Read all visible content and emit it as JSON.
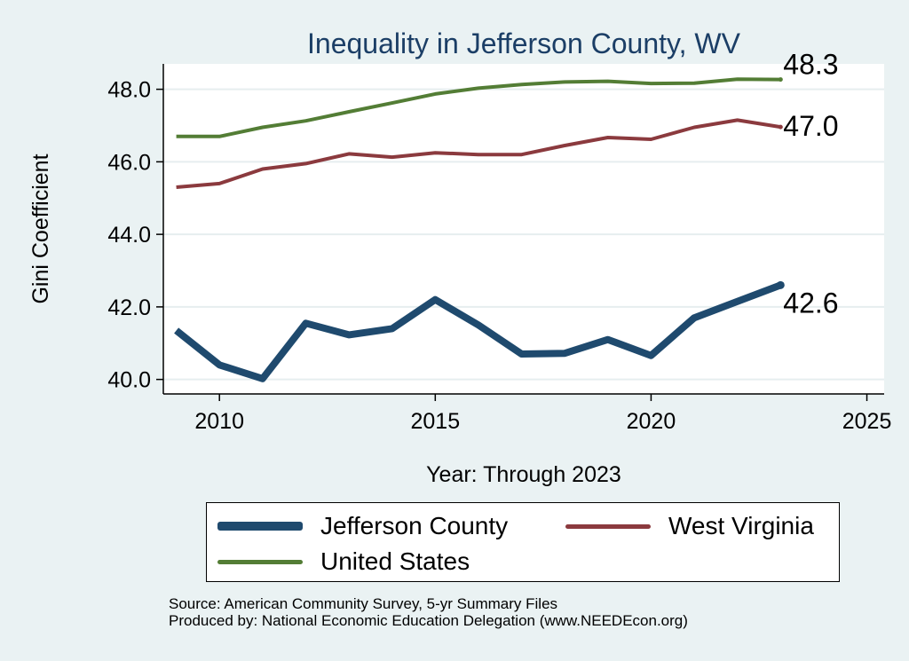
{
  "chart_data": {
    "type": "line",
    "title": "Inequality in Jefferson County, WV",
    "xlabel": "Year: Through 2023",
    "ylabel": "Gini Coefficient",
    "xlim": [
      2008.7,
      2025.4
    ],
    "ylim": [
      39.6,
      48.7
    ],
    "xticks": [
      2010,
      2015,
      2020,
      2025
    ],
    "yticks": [
      40,
      42,
      44,
      46,
      48
    ],
    "ytick_labels": [
      "40.0",
      "42.0",
      "44.0",
      "46.0",
      "48.0"
    ],
    "x": [
      2009,
      2010,
      2011,
      2012,
      2013,
      2014,
      2015,
      2016,
      2017,
      2018,
      2019,
      2020,
      2021,
      2022,
      2023
    ],
    "grid": true,
    "series": [
      {
        "name": "Jefferson County",
        "color": "#1f4a6e",
        "values": [
          41.35,
          40.4,
          40.02,
          41.55,
          41.23,
          41.4,
          42.2,
          41.5,
          40.7,
          40.72,
          41.1,
          40.66,
          41.7,
          42.15,
          42.6
        ],
        "end_label": "42.6"
      },
      {
        "name": "West Virginia",
        "color": "#8b3a3e",
        "values": [
          45.3,
          45.4,
          45.8,
          45.95,
          46.22,
          46.13,
          46.25,
          46.2,
          46.2,
          46.45,
          46.67,
          46.62,
          46.95,
          47.15,
          46.96
        ],
        "end_label": "47.0"
      },
      {
        "name": "United States",
        "color": "#537d35",
        "values": [
          46.7,
          46.7,
          46.95,
          47.13,
          47.38,
          47.62,
          47.87,
          48.03,
          48.13,
          48.2,
          48.22,
          48.16,
          48.17,
          48.28,
          48.27
        ],
        "end_label": "48.3"
      }
    ],
    "legend_position": "bottom"
  },
  "legend": {
    "items": [
      {
        "label": "Jefferson County",
        "color": "#1f4a6e"
      },
      {
        "label": "West Virginia",
        "color": "#8b3a3e"
      },
      {
        "label": "United States",
        "color": "#537d35"
      }
    ]
  },
  "source": {
    "line1": "Source: American Community Survey, 5-yr Summary Files",
    "line2": "Produced by: National Economic Education Delegation (www.NEEDEcon.org)"
  }
}
